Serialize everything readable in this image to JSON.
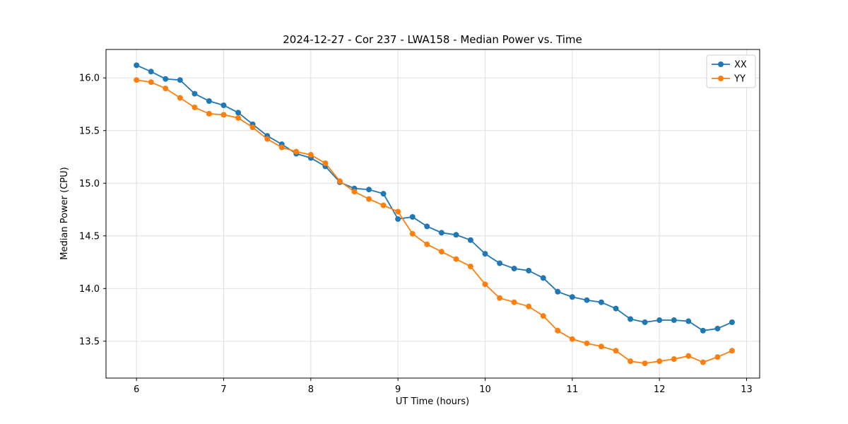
{
  "chart_data": {
    "type": "line",
    "title": "2024-12-27 - Cor 237 - LWA158 - Median Power vs. Time",
    "xlabel": "UT Time (hours)",
    "ylabel": "Median Power (CPU)",
    "xlim": [
      5.65,
      13.15
    ],
    "ylim": [
      13.15,
      16.27
    ],
    "xticks": [
      6,
      7,
      8,
      9,
      10,
      11,
      12,
      13
    ],
    "yticks": [
      13.5,
      14.0,
      14.5,
      15.0,
      15.5,
      16.0
    ],
    "grid": true,
    "legend_position": "upper right",
    "marker": "circle",
    "x": [
      6.0,
      6.167,
      6.333,
      6.5,
      6.667,
      6.833,
      7.0,
      7.167,
      7.333,
      7.5,
      7.667,
      7.833,
      8.0,
      8.167,
      8.333,
      8.5,
      8.667,
      8.833,
      9.0,
      9.167,
      9.333,
      9.5,
      9.667,
      9.833,
      10.0,
      10.167,
      10.333,
      10.5,
      10.667,
      10.833,
      11.0,
      11.167,
      11.333,
      11.5,
      11.667,
      11.833,
      12.0,
      12.167,
      12.333,
      12.5,
      12.667,
      12.833
    ],
    "series": [
      {
        "name": "XX",
        "color": "#1f77b4",
        "values": [
          16.12,
          16.06,
          15.99,
          15.98,
          15.85,
          15.78,
          15.74,
          15.67,
          15.56,
          15.45,
          15.37,
          15.28,
          15.24,
          15.16,
          15.01,
          14.95,
          14.94,
          14.9,
          14.66,
          14.68,
          14.59,
          14.53,
          14.51,
          14.46,
          14.33,
          14.24,
          14.19,
          14.17,
          14.1,
          13.97,
          13.92,
          13.89,
          13.87,
          13.81,
          13.71,
          13.68,
          13.7,
          13.7,
          13.69,
          13.6,
          13.62,
          13.68
        ]
      },
      {
        "name": "YY",
        "color": "#ff7f0e",
        "values": [
          15.98,
          15.96,
          15.9,
          15.81,
          15.72,
          15.66,
          15.65,
          15.62,
          15.53,
          15.42,
          15.34,
          15.3,
          15.27,
          15.19,
          15.02,
          14.92,
          14.85,
          14.79,
          14.73,
          14.52,
          14.42,
          14.35,
          14.28,
          14.21,
          14.04,
          13.91,
          13.87,
          13.83,
          13.74,
          13.6,
          13.52,
          13.48,
          13.45,
          13.41,
          13.31,
          13.29,
          13.31,
          13.33,
          13.36,
          13.3,
          13.35,
          13.41
        ]
      }
    ]
  }
}
